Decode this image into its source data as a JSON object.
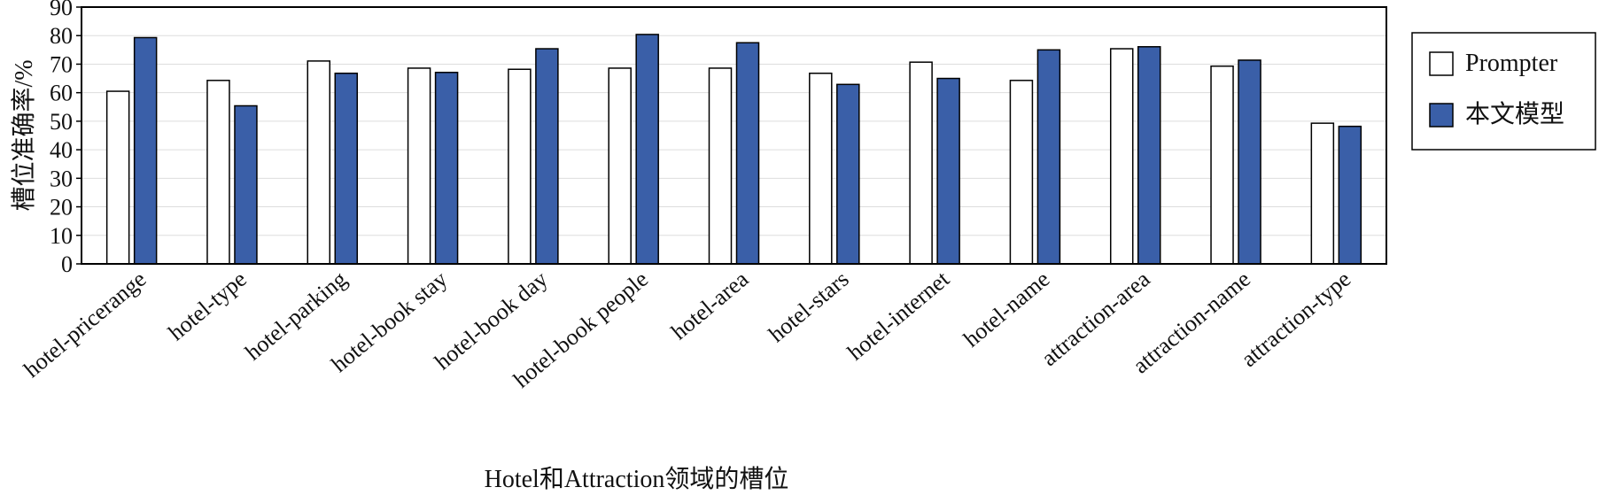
{
  "chart_data": {
    "type": "bar",
    "x_label": "Hotel和Attraction领域的槽位",
    "y_label": "槽位准确率/%",
    "categories": [
      "hotel-pricerange",
      "hotel-type",
      "hotel-parking",
      "hotel-book stay",
      "hotel-book day",
      "hotel-book people",
      "hotel-area",
      "hotel-stars",
      "hotel-internet",
      "hotel-name",
      "attraction-area",
      "attraction-name",
      "attraction-type"
    ],
    "series": [
      {
        "name": "Prompter",
        "color": "#ffffff",
        "values": [
          60.5,
          64.3,
          71.1,
          68.6,
          68.2,
          68.6,
          68.6,
          66.8,
          70.7,
          64.3,
          75.4,
          69.3,
          49.3
        ]
      },
      {
        "name": "本文模型",
        "color": "#3a5fa8",
        "values": [
          79.3,
          55.4,
          66.8,
          67.1,
          75.4,
          80.4,
          77.5,
          62.9,
          65.0,
          75.0,
          76.1,
          71.4,
          48.2
        ]
      }
    ],
    "ylim": [
      0,
      90
    ],
    "yticks": [
      0,
      10,
      20,
      30,
      40,
      50,
      60,
      70,
      80,
      90
    ],
    "grid": true,
    "legend": "right"
  }
}
